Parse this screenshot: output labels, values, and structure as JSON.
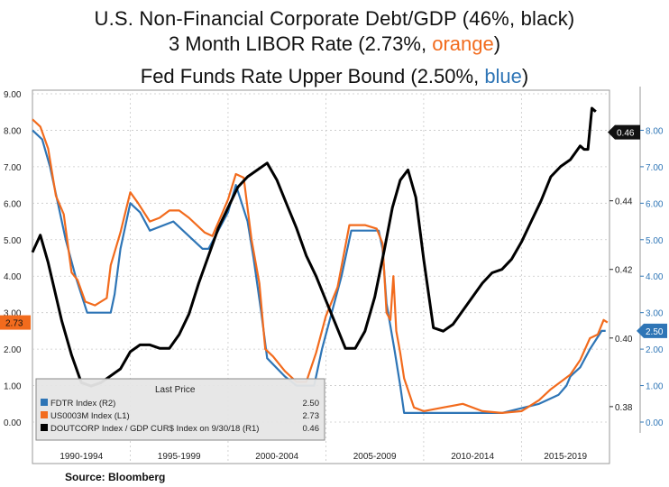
{
  "titles": {
    "line1": {
      "text": "U.S. Non-Financial  Corporate Debt/GDP (46%, black)"
    },
    "line2": {
      "prefix": "3 Month LIBOR Rate  (2.73%, ",
      "colored": "orange",
      "suffix": ")"
    },
    "line3": {
      "prefix": "Fed Funds Rate Upper Bound (2.50%, ",
      "colored": "blue",
      "suffix": ")"
    }
  },
  "source": "Source: Bloomberg",
  "colors": {
    "black": "#000000",
    "orange": "#f26b1d",
    "blue": "#2e75b6",
    "grid": "#c8c8c8",
    "frame": "#9a9a9a"
  },
  "chart_data": {
    "type": "line",
    "x_period_labels": [
      "1990-1994",
      "1995-1999",
      "2000-2004",
      "2005-2009",
      "2010-2014",
      "2015-2019"
    ],
    "xlim": [
      1990,
      2019.5
    ],
    "left_axis": {
      "ticks": [
        "0.00",
        "1.00",
        "2.00",
        "3.00",
        "4.00",
        "5.00",
        "6.00",
        "7.00",
        "8.00",
        "9.00"
      ],
      "ylim": [
        0,
        9
      ]
    },
    "right_axis_pct": {
      "ticks": [
        "0.00",
        "1.00",
        "2.00",
        "3.00",
        "4.00",
        "5.00",
        "6.00",
        "7.00",
        "8.00"
      ],
      "ylim": [
        0,
        9
      ]
    },
    "right_axis_ratio": {
      "ticks": [
        "0.38",
        "0.40",
        "0.42",
        "0.44",
        "0.46"
      ],
      "ylim": [
        0.3755,
        0.4712
      ]
    },
    "badges": {
      "left": "2.73",
      "right_pct": "2.50",
      "right_ratio": "0.46"
    },
    "legend": {
      "header": "Last Price",
      "entries": [
        {
          "label": "FDTR Index  (R2)",
          "value": "2.50",
          "color": "#2e75b6"
        },
        {
          "label": "US0003M Index  (L1)",
          "value": "2.73",
          "color": "#f26b1d"
        },
        {
          "label": "DOUTCORP Index / GDP CUR$ Index on 9/30/18  (R1)",
          "value": "0.46",
          "color": "#000000"
        }
      ]
    },
    "series": [
      {
        "name": "FDTR Index",
        "axis": "right_pct",
        "color": "#2e75b6",
        "x": [
          1990.0,
          1990.5,
          1990.9,
          1991.3,
          1991.7,
          1992.2,
          1992.8,
          1994.0,
          1994.2,
          1994.5,
          1995.0,
          1995.5,
          1996.0,
          1997.2,
          1998.7,
          1999.0,
          1999.5,
          2000.0,
          2000.4,
          2001.0,
          2001.3,
          2001.7,
          2002.0,
          2002.9,
          2003.5,
          2004.4,
          2004.8,
          2005.3,
          2005.8,
          2006.3,
          2007.7,
          2007.9,
          2008.1,
          2008.5,
          2008.8,
          2009.0,
          2010.0,
          2012.0,
          2014.0,
          2015.9,
          2016.9,
          2017.3,
          2017.5,
          2018.0,
          2018.5,
          2018.8,
          2019.1,
          2019.3
        ],
        "y": [
          8.0,
          7.75,
          7.0,
          6.0,
          5.0,
          4.0,
          3.0,
          3.0,
          3.5,
          4.75,
          6.0,
          5.75,
          5.25,
          5.5,
          4.75,
          4.75,
          5.25,
          5.75,
          6.5,
          5.5,
          4.5,
          3.0,
          1.75,
          1.25,
          1.0,
          1.0,
          2.0,
          3.0,
          4.0,
          5.25,
          5.25,
          4.75,
          3.25,
          2.0,
          1.0,
          0.25,
          0.25,
          0.25,
          0.25,
          0.5,
          0.75,
          1.0,
          1.25,
          1.5,
          2.0,
          2.25,
          2.5,
          2.5
        ]
      },
      {
        "name": "US0003M Index",
        "axis": "left",
        "color": "#f26b1d",
        "x": [
          1990.0,
          1990.4,
          1990.8,
          1991.2,
          1991.6,
          1992.0,
          1992.3,
          1992.7,
          1993.2,
          1993.8,
          1994.0,
          1994.5,
          1995.0,
          1995.4,
          1996.0,
          1996.5,
          1997.0,
          1997.5,
          1998.0,
          1998.8,
          1999.2,
          1999.6,
          2000.0,
          2000.4,
          2000.8,
          2001.2,
          2001.6,
          2001.9,
          2002.3,
          2002.9,
          2003.5,
          2004.0,
          2004.5,
          2005.0,
          2005.6,
          2006.2,
          2007.0,
          2007.6,
          2007.9,
          2008.1,
          2008.3,
          2008.45,
          2008.6,
          2008.8,
          2009.0,
          2009.5,
          2010.0,
          2011.0,
          2012.0,
          2013.0,
          2014.0,
          2015.0,
          2015.9,
          2016.5,
          2017.0,
          2017.5,
          2018.0,
          2018.5,
          2018.9,
          2019.2,
          2019.4
        ],
        "y": [
          8.3,
          8.1,
          7.5,
          6.2,
          5.7,
          4.1,
          3.9,
          3.3,
          3.2,
          3.4,
          4.3,
          5.2,
          6.3,
          6.0,
          5.5,
          5.6,
          5.8,
          5.8,
          5.6,
          5.2,
          5.1,
          5.6,
          6.1,
          6.8,
          6.7,
          5.0,
          3.8,
          2.0,
          1.8,
          1.4,
          1.1,
          1.1,
          1.9,
          2.9,
          3.7,
          5.4,
          5.4,
          5.3,
          4.9,
          3.0,
          2.8,
          4.0,
          2.5,
          1.9,
          1.2,
          0.4,
          0.3,
          0.4,
          0.5,
          0.3,
          0.25,
          0.3,
          0.6,
          0.9,
          1.1,
          1.3,
          1.7,
          2.3,
          2.4,
          2.8,
          2.73
        ]
      },
      {
        "name": "DOUTCORP Index / GDP CUR$ Index",
        "axis": "right_ratio",
        "color": "#000000",
        "x": [
          1990.0,
          1990.4,
          1990.8,
          1991.5,
          1992.0,
          1992.5,
          1993.0,
          1993.5,
          1994.0,
          1994.5,
          1995.0,
          1995.5,
          1996.0,
          1996.5,
          1997.0,
          1997.5,
          1998.0,
          1998.5,
          1999.0,
          1999.5,
          2000.0,
          2000.5,
          2001.0,
          2001.5,
          2002.0,
          2002.5,
          2003.0,
          2003.5,
          2004.0,
          2004.5,
          2005.0,
          2005.5,
          2006.0,
          2006.5,
          2007.0,
          2007.5,
          2008.0,
          2008.4,
          2008.8,
          2009.2,
          2009.6,
          2010.0,
          2010.5,
          2011.0,
          2011.5,
          2012.0,
          2012.5,
          2013.0,
          2013.5,
          2014.0,
          2014.5,
          2015.0,
          2015.5,
          2016.0,
          2016.5,
          2017.0,
          2017.5,
          2018.0,
          2018.2,
          2018.4,
          2018.6,
          2018.8
        ],
        "y": [
          0.425,
          0.43,
          0.422,
          0.405,
          0.395,
          0.387,
          0.386,
          0.387,
          0.389,
          0.391,
          0.396,
          0.398,
          0.398,
          0.397,
          0.397,
          0.401,
          0.407,
          0.416,
          0.424,
          0.432,
          0.438,
          0.444,
          0.447,
          0.449,
          0.451,
          0.446,
          0.439,
          0.432,
          0.424,
          0.418,
          0.411,
          0.404,
          0.397,
          0.397,
          0.402,
          0.412,
          0.426,
          0.438,
          0.446,
          0.449,
          0.441,
          0.423,
          0.403,
          0.402,
          0.404,
          0.408,
          0.412,
          0.416,
          0.419,
          0.42,
          0.423,
          0.428,
          0.434,
          0.44,
          0.447,
          0.45,
          0.452,
          0.456,
          0.455,
          0.455,
          0.467,
          0.466
        ]
      }
    ]
  }
}
